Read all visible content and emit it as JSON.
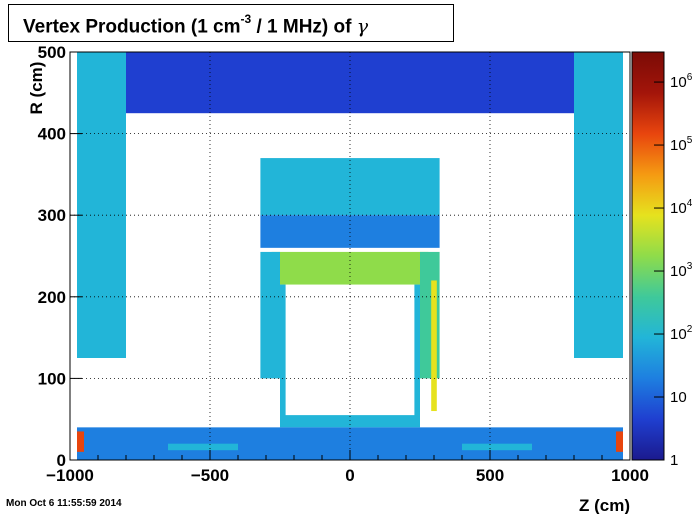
{
  "chart_data": {
    "type": "heatmap",
    "title_parts": {
      "pre": "Vertex Production (1 cm",
      "sup": "-3",
      "mid": " / 1 MHz) of  ",
      "symbol": "γ"
    },
    "xlabel": "Z (cm)",
    "ylabel": "R (cm)",
    "xlim": [
      -1000,
      1000
    ],
    "ylim": [
      0,
      500
    ],
    "xticks": [
      -1000,
      -500,
      0,
      500,
      1000
    ],
    "yticks": [
      0,
      100,
      200,
      300,
      400,
      500
    ],
    "x_tick_labels": [
      "−1000",
      "−500",
      "0",
      "500",
      "1000"
    ],
    "y_tick_labels": [
      "0",
      "100",
      "200",
      "300",
      "400",
      "500"
    ],
    "grid": true,
    "colorbar": {
      "scale": "log",
      "range": [
        1,
        3000000
      ],
      "ticks": [
        {
          "value": 1,
          "base": "1",
          "exp": ""
        },
        {
          "value": 10,
          "base": "10",
          "exp": ""
        },
        {
          "value": 100,
          "base": "10",
          "exp": "2"
        },
        {
          "value": 1000,
          "base": "10",
          "exp": "3"
        },
        {
          "value": 10000,
          "base": "10",
          "exp": "4"
        },
        {
          "value": 100000,
          "base": "10",
          "exp": "5"
        },
        {
          "value": 1000000,
          "base": "10",
          "exp": "6"
        }
      ],
      "colors": [
        "#1b1a8e",
        "#1f3fd0",
        "#1e7fe0",
        "#22b5d8",
        "#3fc99a",
        "#8fdc4a",
        "#e6e21e",
        "#f59a12",
        "#e8450e",
        "#a3150a",
        "#7b0b06"
      ]
    },
    "regions": [
      {
        "z": [
          -975,
          -800
        ],
        "r": [
          125,
          500
        ],
        "level": 1.8
      },
      {
        "z": [
          800,
          975
        ],
        "r": [
          125,
          500
        ],
        "level": 1.8
      },
      {
        "z": [
          -800,
          800
        ],
        "r": [
          425,
          500
        ],
        "level": 0.7
      },
      {
        "z": [
          -320,
          320
        ],
        "r": [
          300,
          370
        ],
        "level": 2.0
      },
      {
        "z": [
          -320,
          320
        ],
        "r": [
          260,
          300
        ],
        "level": 1.6
      },
      {
        "z": [
          -280,
          280
        ],
        "r": [
          215,
          255
        ],
        "level": 3.2
      },
      {
        "z": [
          -320,
          -250
        ],
        "r": [
          100,
          255
        ],
        "level": 2.2
      },
      {
        "z": [
          250,
          320
        ],
        "r": [
          100,
          255
        ],
        "level": 2.4
      },
      {
        "z": [
          -250,
          -230
        ],
        "r": [
          50,
          215
        ],
        "level": 2.0
      },
      {
        "z": [
          230,
          250
        ],
        "r": [
          50,
          215
        ],
        "level": 2.0
      },
      {
        "z": [
          -250,
          250
        ],
        "r": [
          40,
          55
        ],
        "level": 2.2
      },
      {
        "z": [
          -975,
          975
        ],
        "r": [
          0,
          40
        ],
        "level": 1.0
      },
      {
        "z": [
          -975,
          -950
        ],
        "r": [
          10,
          35
        ],
        "level": 5.0
      },
      {
        "z": [
          950,
          975
        ],
        "r": [
          10,
          35
        ],
        "level": 5.0
      },
      {
        "z": [
          290,
          310
        ],
        "r": [
          60,
          220
        ],
        "level": 3.8
      },
      {
        "z": [
          -650,
          -400
        ],
        "r": [
          12,
          20
        ],
        "level": 2.0
      },
      {
        "z": [
          400,
          650
        ],
        "r": [
          12,
          20
        ],
        "level": 2.0
      }
    ]
  },
  "timestamp": "Mon Oct  6 11:55:59 2014"
}
